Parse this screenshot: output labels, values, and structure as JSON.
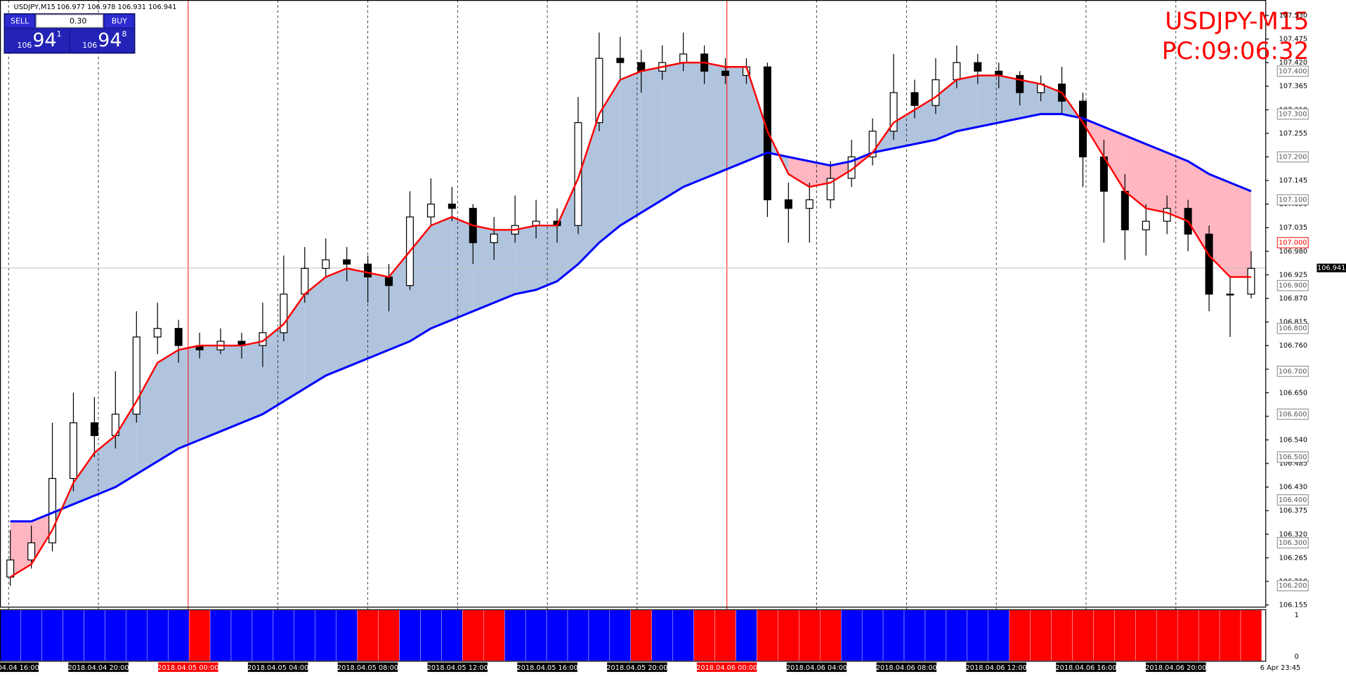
{
  "chart_data": {
    "type": "candlestick",
    "title": "USDJPY,M15",
    "quote": "106.977 106.978 106.931 106.941",
    "overlay_symbol": "USDJPY-M15",
    "overlay_clock": "PC:09:06:32",
    "trade_panel": {
      "sell_label": "SELL",
      "buy_label": "BUY",
      "volume": "0.30",
      "bid": {
        "big_figure": "106",
        "pips": "94",
        "fraction": "1"
      },
      "ask": {
        "big_figure": "106",
        "pips": "94",
        "fraction": "8"
      }
    },
    "ylim": [
      106.149,
      107.566
    ],
    "yticks": [
      {
        "value": 107.53,
        "label": "107.530"
      },
      {
        "value": 107.475,
        "label": "107.475"
      },
      {
        "value": 107.42,
        "label": "107.420"
      },
      {
        "value": 107.365,
        "label": "107.365"
      },
      {
        "value": 107.31,
        "label": "107.310"
      },
      {
        "value": 107.255,
        "label": "107.255"
      },
      {
        "value": 107.2,
        "label": "107.200"
      },
      {
        "value": 107.145,
        "label": "107.145"
      },
      {
        "value": 107.09,
        "label": "107.090"
      },
      {
        "value": 107.035,
        "label": "107.035"
      },
      {
        "value": 106.98,
        "label": "106.980"
      },
      {
        "value": 106.925,
        "label": "106.925"
      },
      {
        "value": 106.87,
        "label": "106.870"
      },
      {
        "value": 106.815,
        "label": "106.815"
      },
      {
        "value": 106.76,
        "label": "106.760"
      },
      {
        "value": 106.705,
        "label": "106.705"
      },
      {
        "value": 106.65,
        "label": "106.650"
      },
      {
        "value": 106.595,
        "label": "106.595"
      },
      {
        "value": 106.54,
        "label": "106.540"
      },
      {
        "value": 106.485,
        "label": "106.485"
      },
      {
        "value": 106.43,
        "label": "106.430"
      },
      {
        "value": 106.375,
        "label": "106.375"
      },
      {
        "value": 106.32,
        "label": "106.320"
      },
      {
        "value": 106.265,
        "label": "106.265"
      },
      {
        "value": 106.21,
        "label": "106.210"
      },
      {
        "value": 106.155,
        "label": "106.155"
      }
    ],
    "price_levels": [
      {
        "value": 107.4,
        "label": "107.400",
        "color": "#808080"
      },
      {
        "value": 107.3,
        "label": "107.300",
        "color": "#808080"
      },
      {
        "value": 107.2,
        "label": "107.200",
        "color": "#808080"
      },
      {
        "value": 107.1,
        "label": "107.100",
        "color": "#808080"
      },
      {
        "value": 107.0,
        "label": "107.000",
        "color": "#ff0000"
      },
      {
        "value": 106.9,
        "label": "106.900",
        "color": "#808080"
      },
      {
        "value": 106.8,
        "label": "106.800",
        "color": "#808080"
      },
      {
        "value": 106.7,
        "label": "106.700",
        "color": "#808080"
      },
      {
        "value": 106.6,
        "label": "106.600",
        "color": "#808080"
      },
      {
        "value": 106.5,
        "label": "106.500",
        "color": "#808080"
      },
      {
        "value": 106.4,
        "label": "106.400",
        "color": "#808080"
      },
      {
        "value": 106.3,
        "label": "106.300",
        "color": "#808080"
      },
      {
        "value": 106.2,
        "label": "106.200",
        "color": "#808080"
      }
    ],
    "current_price": {
      "value": 106.941,
      "label": "106.941"
    },
    "time_labels": [
      {
        "label": "2018.04.04 16:00",
        "color": "#000000"
      },
      {
        "label": "2018.04.04 20:00",
        "color": "#000000"
      },
      {
        "label": "2018.04.05 00:00",
        "color": "#ff0000"
      },
      {
        "label": "2018.04.05 04:00",
        "color": "#000000"
      },
      {
        "label": "2018.04.05 08:00",
        "color": "#000000"
      },
      {
        "label": "2018.04.05 12:00",
        "color": "#000000"
      },
      {
        "label": "2018.04.05 16:00",
        "color": "#000000"
      },
      {
        "label": "2018.04.05 20:00",
        "color": "#000000"
      },
      {
        "label": "2018.04.06 00:00",
        "color": "#ff0000"
      },
      {
        "label": "2018.04.06 04:00",
        "color": "#000000"
      },
      {
        "label": "2018.04.06 08:00",
        "color": "#000000"
      },
      {
        "label": "2018.04.06 12:00",
        "color": "#000000"
      },
      {
        "label": "2018.04.06 16:00",
        "color": "#000000"
      },
      {
        "label": "2018.04.06 20:00",
        "color": "#000000"
      }
    ],
    "last_time_label": "6 Apr 23:45",
    "open": [
      106.22,
      106.26,
      106.3,
      106.45,
      106.58,
      106.55,
      106.6,
      106.78,
      106.8,
      106.76,
      106.75,
      106.77,
      106.76,
      106.79,
      106.88,
      106.94,
      106.96,
      106.95,
      106.92,
      106.9,
      107.06,
      107.09,
      107.08,
      107.0,
      107.02,
      107.04,
      107.05,
      107.04,
      107.28,
      107.43,
      107.42,
      107.4,
      107.42,
      107.44,
      107.4,
      107.39,
      107.41,
      107.1,
      107.08,
      107.1,
      107.15,
      107.2,
      107.26,
      107.35,
      107.32,
      107.38,
      107.42,
      107.4,
      107.39,
      107.35,
      107.37,
      107.33,
      107.2,
      107.12,
      107.03,
      107.05,
      107.08,
      107.02,
      106.88,
      106.88
    ],
    "high": [
      106.33,
      106.34,
      106.58,
      106.65,
      106.64,
      106.7,
      106.84,
      106.86,
      106.82,
      106.79,
      106.8,
      106.79,
      106.86,
      106.97,
      106.99,
      107.01,
      106.99,
      106.97,
      106.95,
      107.12,
      107.15,
      107.13,
      107.09,
      107.06,
      107.11,
      107.1,
      107.08,
      107.34,
      107.49,
      107.48,
      107.45,
      107.46,
      107.49,
      107.46,
      107.43,
      107.43,
      107.42,
      107.14,
      107.14,
      107.19,
      107.24,
      107.29,
      107.44,
      107.38,
      107.43,
      107.46,
      107.44,
      107.42,
      107.4,
      107.39,
      107.41,
      107.35,
      107.24,
      107.16,
      107.09,
      107.11,
      107.1,
      107.04,
      106.92,
      106.98
    ],
    "low": [
      106.2,
      106.24,
      106.28,
      106.42,
      106.5,
      106.52,
      106.58,
      106.74,
      106.72,
      106.73,
      106.74,
      106.73,
      106.71,
      106.77,
      106.86,
      106.92,
      106.91,
      106.86,
      106.84,
      106.89,
      107.04,
      107.05,
      106.95,
      106.96,
      107.0,
      107.01,
      107.0,
      107.02,
      107.26,
      107.38,
      107.35,
      107.38,
      107.4,
      107.37,
      107.37,
      107.37,
      107.06,
      107.0,
      107.0,
      107.08,
      107.13,
      107.18,
      107.24,
      107.29,
      107.3,
      107.36,
      107.37,
      107.36,
      107.32,
      107.33,
      107.3,
      107.13,
      107.0,
      106.96,
      106.97,
      107.02,
      106.98,
      106.84,
      106.78,
      106.87
    ],
    "close": [
      106.26,
      106.3,
      106.45,
      106.58,
      106.55,
      106.6,
      106.78,
      106.8,
      106.76,
      106.75,
      106.77,
      106.76,
      106.79,
      106.88,
      106.94,
      106.96,
      106.95,
      106.92,
      106.9,
      107.06,
      107.09,
      107.08,
      107.0,
      107.02,
      107.04,
      107.05,
      107.04,
      107.28,
      107.43,
      107.42,
      107.4,
      107.42,
      107.44,
      107.4,
      107.39,
      107.41,
      107.1,
      107.08,
      107.1,
      107.15,
      107.2,
      107.26,
      107.35,
      107.32,
      107.38,
      107.42,
      107.4,
      107.39,
      107.35,
      107.37,
      107.33,
      107.2,
      107.12,
      107.03,
      107.05,
      107.08,
      107.02,
      106.88,
      106.88,
      106.94
    ],
    "series": [
      {
        "color": "#0000ff",
        "values": [
          106.35,
          106.35,
          106.37,
          106.39,
          106.41,
          106.43,
          106.46,
          106.49,
          106.52,
          106.54,
          106.56,
          106.58,
          106.6,
          106.63,
          106.66,
          106.69,
          106.71,
          106.73,
          106.75,
          106.77,
          106.8,
          106.82,
          106.84,
          106.86,
          106.88,
          106.89,
          106.91,
          106.95,
          107.0,
          107.04,
          107.07,
          107.1,
          107.13,
          107.15,
          107.17,
          107.19,
          107.21,
          107.2,
          107.19,
          107.18,
          107.19,
          107.21,
          107.22,
          107.23,
          107.24,
          107.26,
          107.27,
          107.28,
          107.29,
          107.3,
          107.3,
          107.29,
          107.27,
          107.25,
          107.23,
          107.21,
          107.19,
          107.16,
          107.14,
          107.12
        ]
      },
      {
        "color": "#ff0000",
        "values": [
          106.22,
          106.25,
          106.33,
          106.44,
          106.51,
          106.55,
          106.63,
          106.72,
          106.75,
          106.76,
          106.76,
          106.76,
          106.77,
          106.81,
          106.88,
          106.92,
          106.94,
          106.93,
          106.92,
          106.98,
          107.04,
          107.06,
          107.04,
          107.03,
          107.03,
          107.04,
          107.04,
          107.15,
          107.3,
          107.38,
          107.4,
          107.41,
          107.42,
          107.42,
          107.41,
          107.41,
          107.26,
          107.16,
          107.13,
          107.14,
          107.17,
          107.21,
          107.28,
          107.31,
          107.34,
          107.38,
          107.39,
          107.39,
          107.38,
          107.37,
          107.35,
          107.28,
          107.2,
          107.12,
          107.08,
          107.07,
          107.05,
          106.97,
          106.92,
          106.92
        ]
      }
    ],
    "fill_above": "#b0c4de",
    "fill_below": "#ffb6c1",
    "trend": {
      "values": [
        1,
        1,
        1,
        1,
        1,
        1,
        1,
        1,
        1,
        0,
        1,
        1,
        1,
        1,
        1,
        1,
        1,
        0,
        0,
        1,
        1,
        1,
        0,
        0,
        1,
        1,
        1,
        1,
        1,
        1,
        0,
        1,
        1,
        0,
        0,
        1,
        0,
        0,
        0,
        0,
        1,
        1,
        1,
        1,
        1,
        1,
        1,
        1,
        0,
        0,
        0,
        0,
        0,
        0,
        0,
        0,
        0,
        0,
        0,
        0
      ],
      "colors": [
        "#ff0000",
        "#0000ff"
      ],
      "yticks": [
        1,
        0
      ]
    }
  }
}
